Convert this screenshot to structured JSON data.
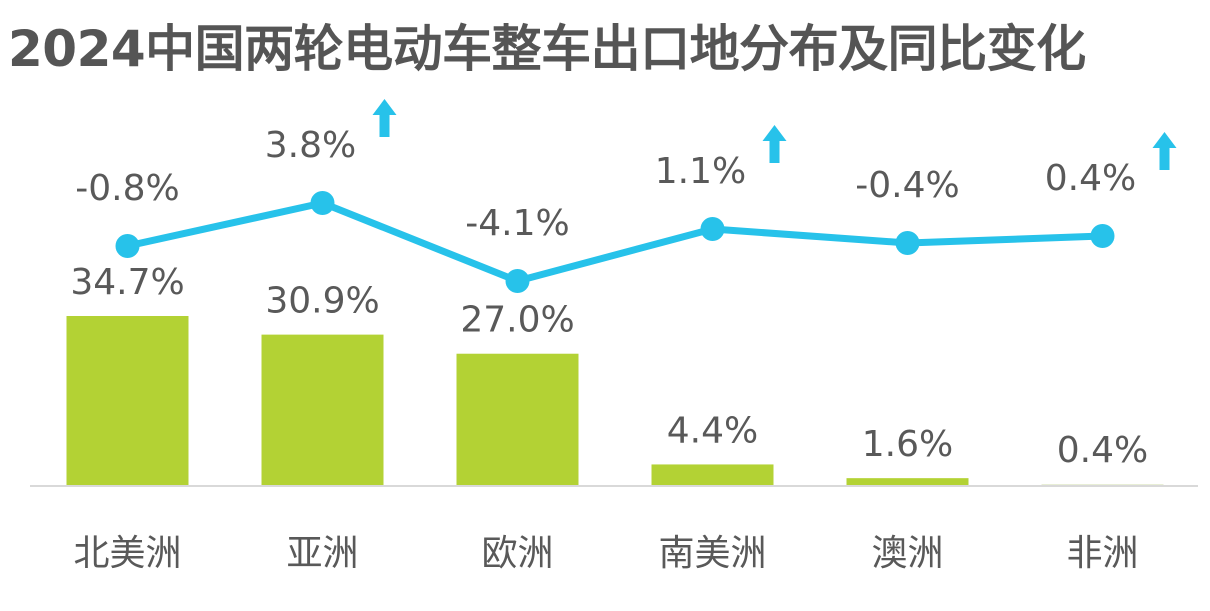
{
  "title": "2024中国两轮电动车整车出口地分布及同比变化",
  "colors": {
    "bar": "#b3d234",
    "line": "#27c2ea",
    "arrow": "#27c2ea",
    "text": "#595959",
    "axis": "#d9d9d9"
  },
  "chart_data": {
    "type": "bar",
    "title": "2024中国两轮电动车整车出口地分布及同比变化",
    "categories": [
      "北美洲",
      "亚洲",
      "欧洲",
      "南美洲",
      "澳洲",
      "非洲"
    ],
    "series": [
      {
        "type": "bar",
        "values": [
          34.7,
          30.9,
          27.0,
          4.4,
          1.6,
          0.4
        ],
        "labels": [
          "34.7%",
          "30.9%",
          "27.0%",
          "4.4%",
          "1.6%",
          "0.4%"
        ]
      },
      {
        "type": "line",
        "values": [
          -0.8,
          3.8,
          -4.1,
          1.1,
          -0.4,
          0.4
        ],
        "labels": [
          "-0.8%",
          "3.8%",
          "-4.1%",
          "1.1%",
          "-0.4%",
          "0.4%"
        ],
        "up_arrow": [
          false,
          true,
          false,
          true,
          false,
          true
        ]
      }
    ],
    "ylim_bar": [
      0,
      55
    ],
    "ylim_line": [
      -8,
      8
    ],
    "grid": false,
    "legend": "none"
  }
}
